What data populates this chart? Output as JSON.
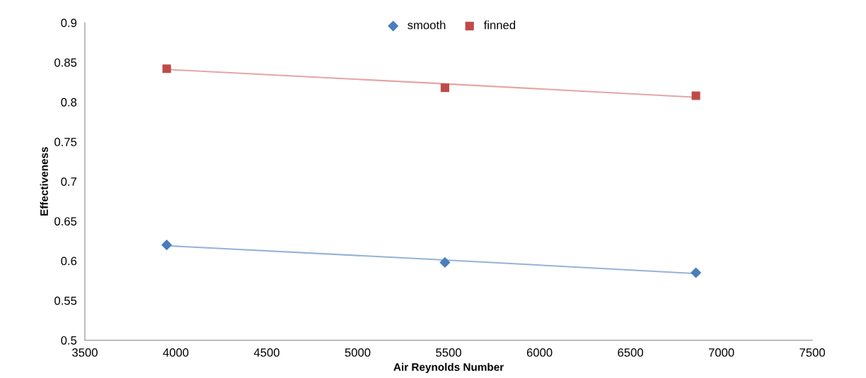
{
  "chart_data": {
    "type": "scatter",
    "xlabel": "Air Reynolds Number",
    "ylabel": "Effectiveness",
    "x": [
      3950,
      5480,
      6860
    ],
    "series": [
      {
        "name": "smooth",
        "marker": "diamond",
        "color": "#4a7ebb",
        "values": [
          0.62,
          0.598,
          0.585
        ]
      },
      {
        "name": "finned",
        "marker": "square",
        "color": "#be4b48",
        "values": [
          0.842,
          0.818,
          0.808
        ]
      },
      {
        "type": "line",
        "marker": "none",
        "color": "#95b3d7",
        "values": [
          0.619,
          0.601,
          0.584
        ]
      },
      {
        "type": "line",
        "marker": "none",
        "color": "#e6a5a4",
        "values": [
          0.841,
          0.823,
          0.806
        ]
      }
    ],
    "xlim": [
      3500,
      7500
    ],
    "xticks": [
      3500,
      4000,
      4500,
      5000,
      5500,
      6000,
      6500,
      7000,
      7500
    ],
    "ylim": [
      0.5,
      0.9
    ],
    "yticks": [
      0.5,
      0.55,
      0.6,
      0.65,
      0.7,
      0.75,
      0.8,
      0.85,
      0.9
    ],
    "grid": false,
    "legend": "top"
  }
}
